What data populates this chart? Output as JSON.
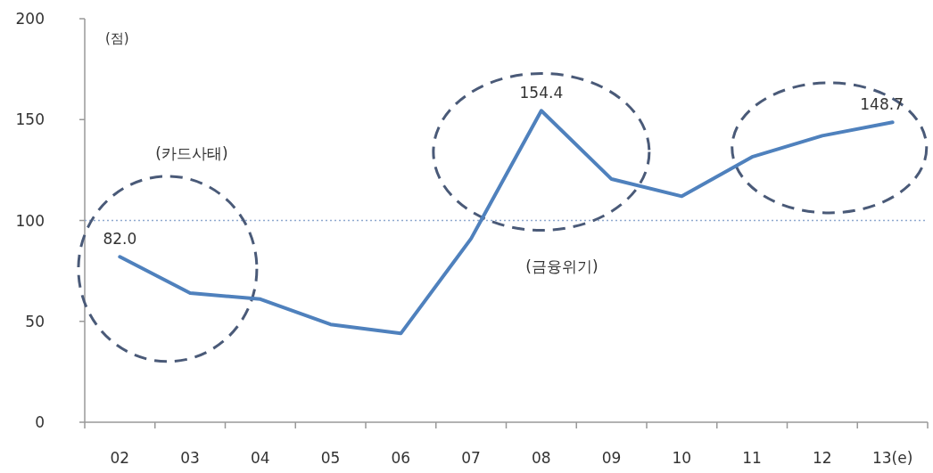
{
  "chart_data": {
    "type": "line",
    "ylabel": "(점)",
    "categories": [
      "02",
      "03",
      "04",
      "05",
      "06",
      "07",
      "08",
      "09",
      "10",
      "11",
      "12",
      "13(e)"
    ],
    "series": [
      {
        "color": "#4f81bd",
        "values": [
          82.0,
          64,
          61,
          48.5,
          44,
          91,
          154.4,
          120.5,
          112,
          131.5,
          142,
          148.7
        ],
        "value_labels": [
          "82.0",
          null,
          null,
          null,
          null,
          null,
          "154.4",
          null,
          null,
          null,
          null,
          "148.7"
        ]
      }
    ],
    "ylim": [
      0,
      200
    ],
    "yticks": [
      0,
      50,
      100,
      150,
      200
    ],
    "ref_lines": [
      {
        "axis": "y",
        "value": 100,
        "color": "#8fa9cf",
        "line_style": "dotted"
      }
    ],
    "annotations": [
      "(카드사태)",
      "(금융위기)"
    ],
    "grid": false,
    "marker": "none",
    "line_style": "solid"
  }
}
